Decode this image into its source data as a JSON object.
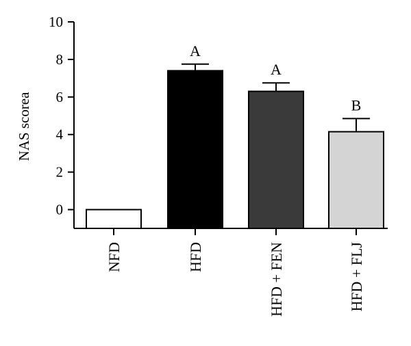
{
  "chart_data": {
    "type": "bar",
    "title": "",
    "xlabel": "",
    "ylabel": "NAS scorea",
    "ylim": [
      -1,
      10
    ],
    "yticks": [
      0,
      2,
      4,
      6,
      8,
      10
    ],
    "grid": false,
    "categories": [
      "NFD",
      "HFD",
      "HFD + FEN",
      "HFD + FLJ"
    ],
    "values": [
      0,
      7.4,
      6.3,
      4.15
    ],
    "errors": [
      0,
      0.35,
      0.45,
      0.7
    ],
    "annotations": [
      "",
      "A",
      "A",
      "B"
    ],
    "colors": [
      "#ffffff",
      "#000000",
      "#3a3a3a",
      "#d4d4d4"
    ]
  }
}
